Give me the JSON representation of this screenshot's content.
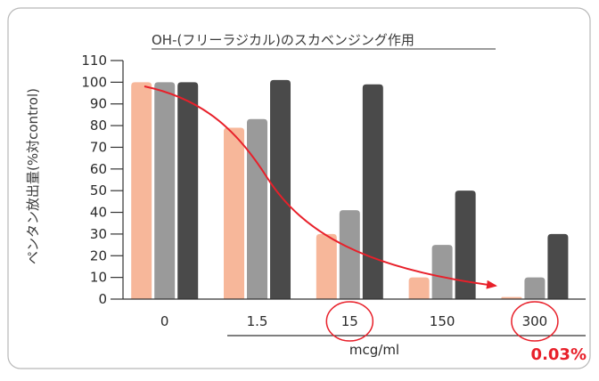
{
  "colors": {
    "frame": "#b8b8b8",
    "axis": "#333333",
    "series": [
      "#f7b79a",
      "#9a9a9a",
      "#4a4a4a"
    ],
    "accent": "#e8202a"
  },
  "chart_data": {
    "type": "bar",
    "title": "OH-(フリーラジカル)のスカベンジング作用",
    "ylabel": "ペンタン放出量(%対control)",
    "xlabel": "mcg/ml",
    "ylim": [
      0,
      110
    ],
    "yticks": [
      "0",
      "10",
      "20",
      "30",
      "40",
      "50",
      "60",
      "70",
      "80",
      "90",
      "100",
      "110"
    ],
    "categories": [
      "0",
      "1.5",
      "15",
      "150",
      "300"
    ],
    "series": [
      {
        "values": [
          100,
          79,
          30,
          10,
          1
        ]
      },
      {
        "values": [
          100,
          83,
          41,
          25,
          10
        ]
      },
      {
        "values": [
          100,
          101,
          99,
          50,
          30
        ]
      }
    ],
    "highlighted_categories": [
      "15",
      "300"
    ],
    "annotation": "0.03%",
    "trend": "decreasing red arrow from 0 to 300"
  }
}
